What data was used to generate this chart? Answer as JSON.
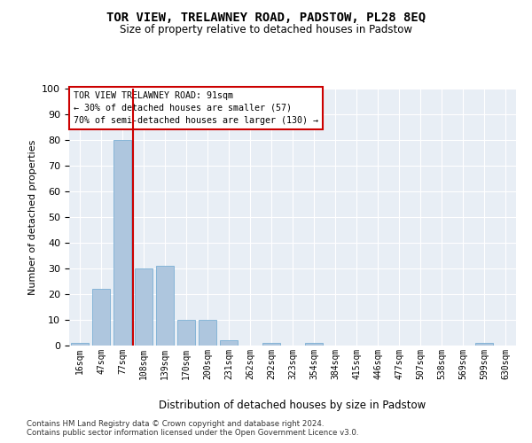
{
  "title": "TOR VIEW, TRELAWNEY ROAD, PADSTOW, PL28 8EQ",
  "subtitle": "Size of property relative to detached houses in Padstow",
  "xlabel": "Distribution of detached houses by size in Padstow",
  "ylabel": "Number of detached properties",
  "bar_color": "#aec6de",
  "bar_edge_color": "#7aafd4",
  "bg_color": "#e8eef5",
  "grid_color": "#ffffff",
  "categories": [
    "16sqm",
    "47sqm",
    "77sqm",
    "108sqm",
    "139sqm",
    "170sqm",
    "200sqm",
    "231sqm",
    "262sqm",
    "292sqm",
    "323sqm",
    "354sqm",
    "384sqm",
    "415sqm",
    "446sqm",
    "477sqm",
    "507sqm",
    "538sqm",
    "569sqm",
    "599sqm",
    "630sqm"
  ],
  "values": [
    1,
    22,
    80,
    30,
    31,
    10,
    10,
    2,
    0,
    1,
    0,
    1,
    0,
    0,
    0,
    0,
    0,
    0,
    0,
    1,
    0
  ],
  "ylim": [
    0,
    100
  ],
  "yticks": [
    0,
    10,
    20,
    30,
    40,
    50,
    60,
    70,
    80,
    90,
    100
  ],
  "vline_x": 2.5,
  "vline_color": "#cc0000",
  "annotation_text": "TOR VIEW TRELAWNEY ROAD: 91sqm\n← 30% of detached houses are smaller (57)\n70% of semi-detached houses are larger (130) →",
  "annotation_box_color": "#ffffff",
  "annotation_box_edge": "#cc0000",
  "footer1": "Contains HM Land Registry data © Crown copyright and database right 2024.",
  "footer2": "Contains public sector information licensed under the Open Government Licence v3.0."
}
